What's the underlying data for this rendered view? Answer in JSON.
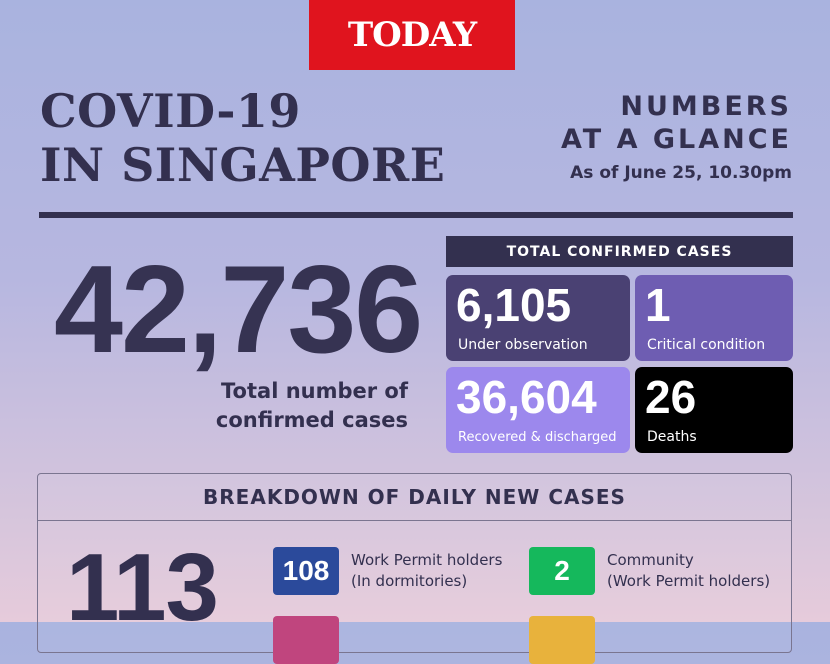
{
  "logo": {
    "text": "TODAY",
    "color": "#e0141e"
  },
  "title": {
    "line1": "COVID-19",
    "line2": "IN SINGAPORE"
  },
  "glance": {
    "line1": "NUMBERS",
    "line2": "AT A GLANCE",
    "as_of": "As of June 25, 10.30pm"
  },
  "total": {
    "value": "42,736",
    "label_line1": "Total number of",
    "label_line2": "confirmed cases"
  },
  "confirmed": {
    "header": "TOTAL CONFIRMED CASES",
    "tiles": [
      {
        "value": "6,105",
        "label": "Under observation",
        "color": "#4a4173"
      },
      {
        "value": "1",
        "label": "Critical condition",
        "color": "#6e5db2"
      },
      {
        "value": "36,604",
        "label": "Recovered & discharged",
        "color": "#9c88ed"
      },
      {
        "value": "26",
        "label": "Deaths",
        "color": "#000000"
      }
    ]
  },
  "breakdown": {
    "header": "BREAKDOWN OF DAILY NEW CASES",
    "total": "113",
    "items": [
      {
        "value": "108",
        "line1": "Work Permit holders",
        "line2": "(In dormitories)",
        "color": "#2b4a9b"
      },
      {
        "value": "2",
        "line1": "Community",
        "line2": "(Work Permit holders)",
        "color": "#15b85c"
      }
    ]
  }
}
